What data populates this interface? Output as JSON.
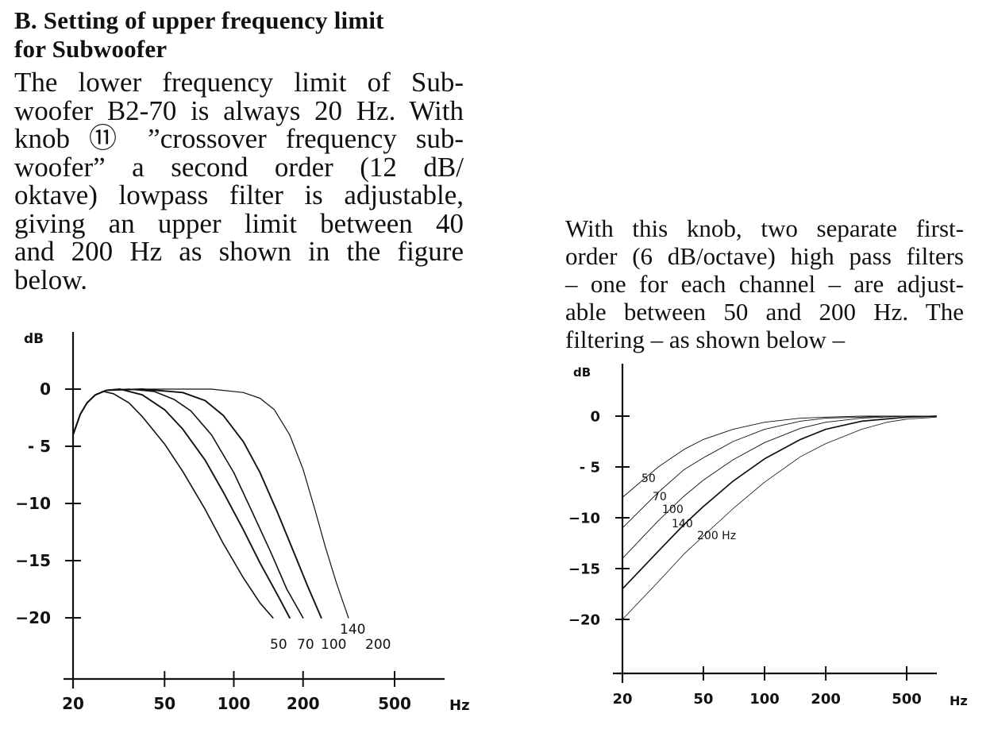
{
  "heading": {
    "line1": "B.  Setting of upper frequency limit",
    "line2": "for Subwoofer"
  },
  "left_paragraph": [
    "The lower frequency limit of Sub-",
    "woofer B2-70 is always 20 Hz. With",
    "knob ⑪ ”crossover frequency sub-",
    "woofer” a second order (12 dB/",
    "oktave) lowpass filter is adjustable,",
    "giving an upper limit between 40",
    "and 200 Hz as shown in the figure",
    "below."
  ],
  "right_paragraph": [
    "With this knob, two separate first-",
    "order (6 dB/octave) high pass filters",
    "– one for each channel – are adjust-",
    "able between 50 and 200 Hz. The",
    "filtering – as shown below –"
  ],
  "chart_data": [
    {
      "type": "line",
      "title": "",
      "xlabel": "Hz",
      "ylabel": "dB",
      "x_scale": "log",
      "xlim": [
        20,
        750
      ],
      "ylim": [
        -25,
        3
      ],
      "x_ticks": [
        20,
        50,
        100,
        200,
        500
      ],
      "x_tick_labels": [
        "20",
        "50",
        "100",
        "200",
        "500"
      ],
      "y_ticks": [
        0,
        -5,
        -10,
        -15,
        -20
      ],
      "y_tick_labels": [
        "0",
        "- 5",
        "−10",
        "−15",
        "−20"
      ],
      "grid": false,
      "series": [
        {
          "name": "50",
          "points": [
            [
              20,
              -4
            ],
            [
              21.5,
              -2.2
            ],
            [
              23,
              -1.2
            ],
            [
              25,
              -0.5
            ],
            [
              27,
              -0.2
            ],
            [
              30,
              -0.4
            ],
            [
              35,
              -1.2
            ],
            [
              40,
              -2.4
            ],
            [
              50,
              -4.8
            ],
            [
              60,
              -7.2
            ],
            [
              75,
              -10.5
            ],
            [
              90,
              -13.5
            ],
            [
              110,
              -16.5
            ],
            [
              130,
              -18.7
            ],
            [
              148,
              -20
            ]
          ]
        },
        {
          "name": "70",
          "points": [
            [
              20,
              -4
            ],
            [
              21.5,
              -2.2
            ],
            [
              23,
              -1.2
            ],
            [
              25,
              -0.5
            ],
            [
              28,
              -0.1
            ],
            [
              32,
              0
            ],
            [
              40,
              -0.5
            ],
            [
              50,
              -1.8
            ],
            [
              60,
              -3.5
            ],
            [
              75,
              -6.2
            ],
            [
              90,
              -9
            ],
            [
              110,
              -12.3
            ],
            [
              130,
              -15.2
            ],
            [
              155,
              -18
            ],
            [
              175,
              -20
            ]
          ]
        },
        {
          "name": "100",
          "points": [
            [
              20,
              -4
            ],
            [
              21.5,
              -2.2
            ],
            [
              23,
              -1.2
            ],
            [
              25,
              -0.5
            ],
            [
              28,
              -0.1
            ],
            [
              35,
              0
            ],
            [
              45,
              -0.2
            ],
            [
              55,
              -0.9
            ],
            [
              65,
              -1.9
            ],
            [
              80,
              -4
            ],
            [
              100,
              -7.3
            ],
            [
              120,
              -10.7
            ],
            [
              145,
              -14.3
            ],
            [
              170,
              -17.5
            ],
            [
              200,
              -20
            ]
          ]
        },
        {
          "name": "140",
          "points": [
            [
              20,
              -4
            ],
            [
              21.5,
              -2.2
            ],
            [
              23,
              -1.2
            ],
            [
              25,
              -0.5
            ],
            [
              28,
              -0.1
            ],
            [
              40,
              0
            ],
            [
              60,
              -0.3
            ],
            [
              75,
              -1
            ],
            [
              90,
              -2.3
            ],
            [
              110,
              -4.6
            ],
            [
              130,
              -7.3
            ],
            [
              155,
              -10.8
            ],
            [
              180,
              -14
            ],
            [
              210,
              -17.3
            ],
            [
              240,
              -20
            ]
          ]
        },
        {
          "name": "200",
          "points": [
            [
              20,
              -4
            ],
            [
              21.5,
              -2.2
            ],
            [
              23,
              -1.2
            ],
            [
              25,
              -0.5
            ],
            [
              28,
              -0.1
            ],
            [
              40,
              0
            ],
            [
              80,
              0
            ],
            [
              110,
              -0.3
            ],
            [
              130,
              -0.8
            ],
            [
              150,
              -1.8
            ],
            [
              175,
              -4
            ],
            [
              200,
              -7
            ],
            [
              225,
              -10.5
            ],
            [
              250,
              -13.8
            ],
            [
              280,
              -17
            ],
            [
              315,
              -20
            ]
          ]
        }
      ]
    },
    {
      "type": "line",
      "title": "",
      "xlabel": "Hz",
      "ylabel": "dB",
      "x_scale": "log",
      "xlim": [
        16,
        800
      ],
      "ylim": [
        -25,
        3
      ],
      "x_ticks": [
        20,
        50,
        100,
        200,
        500
      ],
      "x_tick_labels": [
        "20",
        "50",
        "100",
        "200",
        "500"
      ],
      "y_ticks": [
        0,
        -5,
        -10,
        -15,
        -20
      ],
      "y_tick_labels": [
        "0",
        "- 5",
        "−10",
        "−15",
        "−20"
      ],
      "grid": false,
      "series": [
        {
          "name": "50",
          "points": [
            [
              20,
              -8
            ],
            [
              30,
              -5
            ],
            [
              40,
              -3.3
            ],
            [
              50,
              -2.3
            ],
            [
              70,
              -1.3
            ],
            [
              100,
              -0.6
            ],
            [
              150,
              -0.2
            ],
            [
              200,
              -0.1
            ],
            [
              300,
              0
            ],
            [
              700,
              0
            ]
          ]
        },
        {
          "name": "70",
          "points": [
            [
              20,
              -11
            ],
            [
              30,
              -7.5
            ],
            [
              40,
              -5.3
            ],
            [
              50,
              -4.1
            ],
            [
              70,
              -2.5
            ],
            [
              100,
              -1.3
            ],
            [
              150,
              -0.5
            ],
            [
              200,
              -0.2
            ],
            [
              300,
              -0.1
            ],
            [
              400,
              0
            ],
            [
              700,
              0
            ]
          ]
        },
        {
          "name": "100",
          "points": [
            [
              20,
              -14
            ],
            [
              30,
              -10.3
            ],
            [
              40,
              -7.9
            ],
            [
              50,
              -6.3
            ],
            [
              70,
              -4.3
            ],
            [
              100,
              -2.6
            ],
            [
              150,
              -1.2
            ],
            [
              200,
              -0.6
            ],
            [
              300,
              -0.2
            ],
            [
              500,
              0
            ],
            [
              700,
              0
            ]
          ]
        },
        {
          "name": "140",
          "points": [
            [
              20,
              -17
            ],
            [
              30,
              -13.3
            ],
            [
              40,
              -10.7
            ],
            [
              50,
              -8.9
            ],
            [
              70,
              -6.4
            ],
            [
              100,
              -4.2
            ],
            [
              150,
              -2.3
            ],
            [
              200,
              -1.3
            ],
            [
              300,
              -0.5
            ],
            [
              500,
              -0.1
            ],
            [
              700,
              0
            ]
          ]
        },
        {
          "name": "200 Hz",
          "points": [
            [
              20,
              -20
            ],
            [
              30,
              -16.3
            ],
            [
              40,
              -13.6
            ],
            [
              50,
              -11.8
            ],
            [
              70,
              -9.1
            ],
            [
              100,
              -6.5
            ],
            [
              150,
              -4
            ],
            [
              200,
              -2.7
            ],
            [
              300,
              -1.3
            ],
            [
              400,
              -0.6
            ],
            [
              500,
              -0.3
            ],
            [
              700,
              -0.1
            ]
          ]
        }
      ]
    }
  ]
}
